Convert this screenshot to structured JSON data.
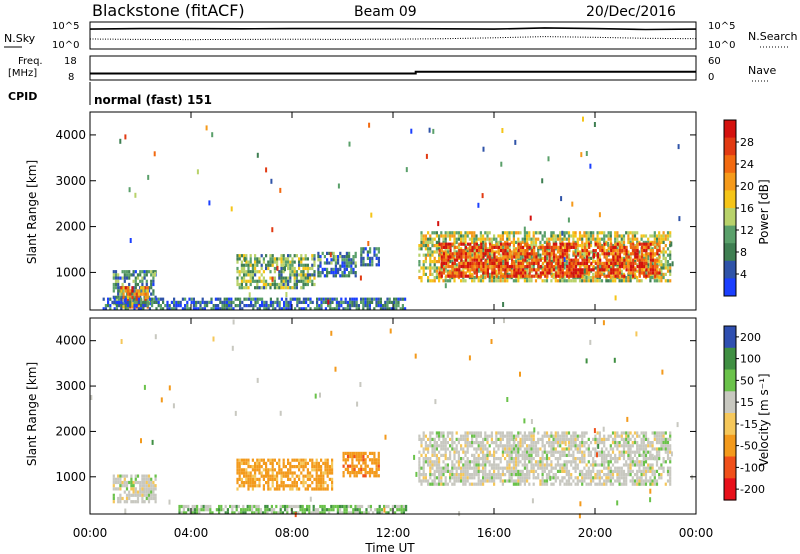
{
  "header": {
    "station": "Blackstone (fitACF)",
    "beam": "Beam 09",
    "date": "20/Dec/2016"
  },
  "noise_panel": {
    "left_label": "N.Sky",
    "right_label": "N.Search",
    "left_ticks": [
      "10^5",
      "10^0"
    ],
    "right_ticks": [
      "10^5",
      "10^0"
    ]
  },
  "freq_panel": {
    "left_label_top": "Freq.",
    "left_label_bottom": "[MHz]",
    "right_label": "Nave",
    "left_ticks": [
      "18",
      "8"
    ],
    "right_ticks": [
      "60",
      "0"
    ]
  },
  "cpid": {
    "label": "CPID",
    "value": "normal (fast) 151"
  },
  "x_axis": {
    "label": "Time UT",
    "ticks": [
      "00:00",
      "04:00",
      "08:00",
      "12:00",
      "16:00",
      "20:00",
      "00:00"
    ]
  },
  "colors": {
    "power": [
      "#1b3fff",
      "#2f53a8",
      "#3f7f52",
      "#5aa06a",
      "#b8d26a",
      "#f5c518",
      "#f59a1a",
      "#f26a10",
      "#e23a12",
      "#d4110e"
    ],
    "velocity": [
      "#e8101a",
      "#f0501a",
      "#f39a1c",
      "#f5c75a",
      "#c8c8c0",
      "#6ac24a",
      "#3f8f42",
      "#2f4fb0"
    ],
    "ground_scatter": "#a8a8a0"
  },
  "chart_data": [
    {
      "type": "heatmap",
      "name_hint": "power",
      "ylabel": "Slant Range [km]",
      "y_ticks": [
        "1000",
        "2000",
        "3000",
        "4000"
      ],
      "ylim": [
        180,
        4500
      ],
      "xlim_hours": [
        0,
        24
      ],
      "colorbar": {
        "label": "Power [dB]",
        "ticks": [
          "4",
          "8",
          "12",
          "16",
          "20",
          "24",
          "28"
        ],
        "range": [
          0,
          30
        ]
      },
      "regions": [
        {
          "t0": 0.9,
          "t1": 2.6,
          "r0": 350,
          "r1": 1050,
          "value": 8
        },
        {
          "t0": 1.2,
          "t1": 2.3,
          "r0": 250,
          "r1": 700,
          "value": 22
        },
        {
          "t0": 5.8,
          "t1": 8.9,
          "r0": 700,
          "r1": 1400,
          "value": 11
        },
        {
          "t0": 9.0,
          "t1": 10.5,
          "r0": 900,
          "r1": 1450,
          "value": 7
        },
        {
          "t0": 10.7,
          "t1": 11.4,
          "r0": 1150,
          "r1": 1550,
          "value": 6
        },
        {
          "t0": 13.0,
          "t1": 23.0,
          "r0": 850,
          "r1": 1900,
          "value": 14
        },
        {
          "t0": 13.8,
          "t1": 22.6,
          "r0": 950,
          "r1": 1650,
          "value": 25
        },
        {
          "t0": 0.5,
          "t1": 12.5,
          "r0": 180,
          "r1": 450,
          "value": 6
        }
      ]
    },
    {
      "type": "heatmap",
      "name_hint": "velocity",
      "ylabel": "Slant Range [km]",
      "y_ticks": [
        "1000",
        "2000",
        "3000",
        "4000"
      ],
      "ylim": [
        180,
        4500
      ],
      "xlim_hours": [
        0,
        24
      ],
      "colorbar": {
        "label": "Velocity [m s⁻¹]",
        "ticks": [
          "200",
          "100",
          "50",
          "15",
          "-15",
          "-50",
          "-100",
          "-200"
        ],
        "range": [
          -250,
          250
        ]
      },
      "regions": [
        {
          "t0": 0.9,
          "t1": 2.6,
          "r0": 450,
          "r1": 1050,
          "value": 0
        },
        {
          "t0": 5.8,
          "t1": 9.6,
          "r0": 700,
          "r1": 1400,
          "value": -45
        },
        {
          "t0": 10.0,
          "t1": 11.4,
          "r0": 1000,
          "r1": 1550,
          "value": -60
        },
        {
          "t0": 13.0,
          "t1": 23.0,
          "r0": 850,
          "r1": 2000,
          "value": 0
        },
        {
          "t0": 3.5,
          "t1": 12.5,
          "r0": 180,
          "r1": 380,
          "value": 20
        }
      ]
    },
    {
      "type": "line",
      "name_hint": "noise",
      "x": [
        0,
        2,
        4,
        6,
        8,
        10,
        12,
        14,
        16,
        18,
        20,
        22,
        24
      ],
      "series": [
        {
          "values": [
            0.78,
            0.8,
            0.8,
            0.79,
            0.8,
            0.8,
            0.8,
            0.79,
            0.78,
            0.83,
            0.8,
            0.76,
            0.78
          ]
        },
        {
          "values": [
            0.35,
            0.33,
            0.32,
            0.33,
            0.34,
            0.33,
            0.34,
            0.36,
            0.4,
            0.45,
            0.42,
            0.38,
            0.36
          ]
        }
      ]
    },
    {
      "type": "line",
      "name_hint": "frequency",
      "x": [
        0,
        12.9,
        12.9,
        24
      ],
      "series": [
        {
          "values": [
            10.5,
            10.5,
            11.3,
            11.3
          ]
        }
      ]
    }
  ]
}
